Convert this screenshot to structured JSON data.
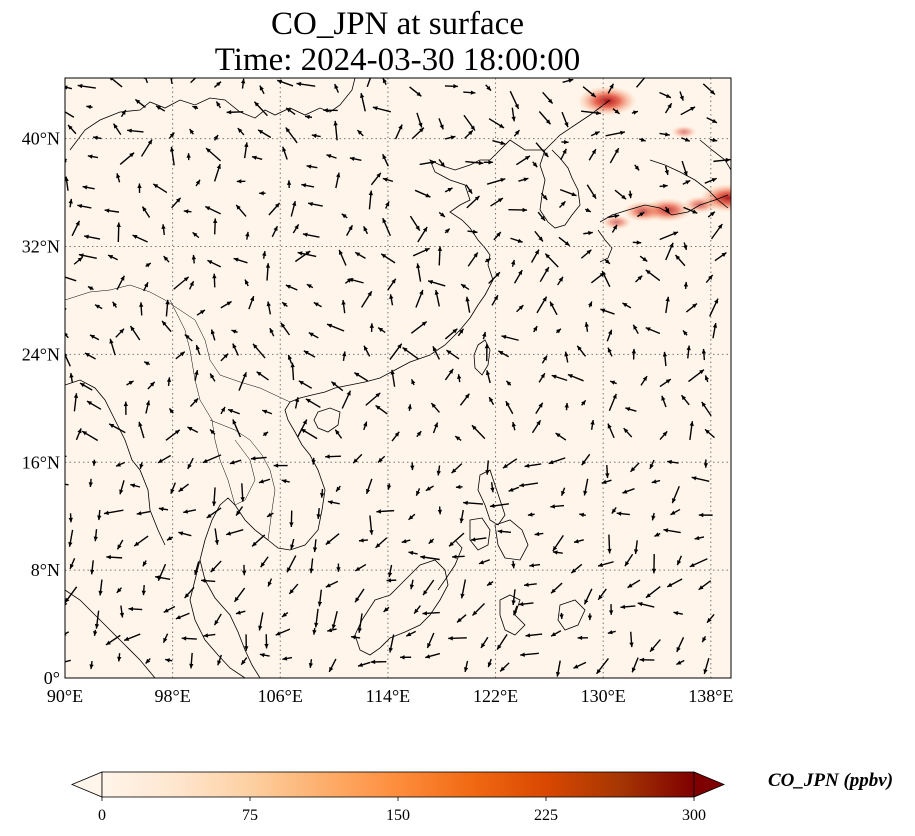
{
  "title": {
    "line1": "CO_JPN at surface",
    "line2": "Time: 2024-03-30 18:00:00"
  },
  "map": {
    "variable": "CO_JPN",
    "projection": "PlateCarree",
    "lon_range": [
      90,
      139.5
    ],
    "lat_range": [
      0,
      44.5
    ],
    "gridlines": "dotted",
    "lon_ticks": [
      {
        "value": 90,
        "label": "90°E"
      },
      {
        "value": 98,
        "label": "98°E"
      },
      {
        "value": 106,
        "label": "106°E"
      },
      {
        "value": 114,
        "label": "114°E"
      },
      {
        "value": 122,
        "label": "122°E"
      },
      {
        "value": 130,
        "label": "130°E"
      },
      {
        "value": 138,
        "label": "138°E"
      }
    ],
    "lat_ticks": [
      {
        "value": 0,
        "label": "0°"
      },
      {
        "value": 8,
        "label": "8°N"
      },
      {
        "value": 16,
        "label": "16°N"
      },
      {
        "value": 24,
        "label": "24°N"
      },
      {
        "value": 32,
        "label": "32°N"
      },
      {
        "value": 40,
        "label": "40°N"
      }
    ],
    "background_color": "#fff5eb",
    "coastline_color": "#000000",
    "hotspots": [
      {
        "lon": 130.3,
        "lat": 42.8,
        "level": 0.95
      },
      {
        "lon": 133.0,
        "lat": 34.6,
        "level": 0.55
      },
      {
        "lon": 134.8,
        "lat": 34.7,
        "level": 0.7
      },
      {
        "lon": 137.2,
        "lat": 35.1,
        "level": 0.4
      },
      {
        "lon": 139.3,
        "lat": 35.6,
        "level": 0.9
      },
      {
        "lon": 131.0,
        "lat": 33.8,
        "level": 0.3
      },
      {
        "lon": 136.0,
        "lat": 40.5,
        "level": 0.2
      }
    ]
  },
  "colorbar": {
    "label": "CO_JPN (ppbv)",
    "colormap": [
      "#fff5eb",
      "#fee6ce",
      "#fdd0a2",
      "#fdae6b",
      "#fd8d3c",
      "#f16913",
      "#d94801",
      "#a63603",
      "#7f0000"
    ],
    "ticks": [
      "0",
      "75",
      "150",
      "225",
      "300"
    ],
    "range": [
      0,
      300
    ],
    "extend": "both"
  }
}
